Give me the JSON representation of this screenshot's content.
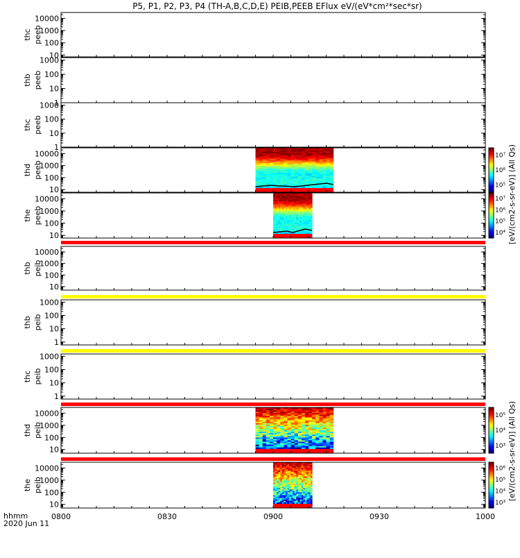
{
  "title": "P5, P1, P2, P3, P4 (TH-A,B,C,D,E) PEIB,PEEB EFlux eV/(eV*cm²*sec*sr)",
  "colorbar_label_top": "[eV/(cm2-s-sr-eV)] (All Qs)",
  "colorbar_label_bottom": "[eV/(cm2-s-sr-eV)] (All Qs)",
  "time_label": "hhmm",
  "date_label": "2020 Jun 11",
  "chart_data": {
    "type": "heatmap",
    "x_ticks": [
      "0800",
      "0830",
      "0900",
      "0930",
      "1000"
    ],
    "x_range": [
      "08:00",
      "10:00"
    ],
    "panels": [
      {
        "sat": "thc",
        "product": "peeb",
        "ylog": true,
        "ylim": [
          7,
          30000
        ],
        "yticks": [
          "10",
          "100",
          "1000",
          "10000"
        ],
        "spectrogram": null
      },
      {
        "sat": "thb",
        "product": "peeb",
        "ylog": true,
        "ylim": [
          1,
          1500
        ],
        "yticks": [
          "1",
          "10",
          "100",
          "1000"
        ],
        "spectrogram": null
      },
      {
        "sat": "thc",
        "product": "peeb",
        "ylog": true,
        "ylim": [
          1,
          1500
        ],
        "yticks": [
          "1",
          "10",
          "100",
          "1000"
        ],
        "spectrogram": null
      },
      {
        "sat": "thd",
        "product": "peeb",
        "ylog": true,
        "ylim": [
          6,
          30000
        ],
        "yticks": [
          "10",
          "100",
          "1000",
          "10000"
        ],
        "spectrogram": {
          "t_start": "08:55",
          "t_end": "09:17",
          "colorbar_ticks": [
            "10⁵",
            "10⁶",
            "10⁷"
          ]
        }
      },
      {
        "sat": "the",
        "product": "peeb",
        "ylog": true,
        "ylim": [
          6,
          30000
        ],
        "yticks": [
          "10",
          "100",
          "1000",
          "10000"
        ],
        "spectrogram": {
          "t_start": "09:00",
          "t_end": "09:11",
          "colorbar_ticks": [
            "10⁴",
            "10⁵",
            "10⁶",
            "10⁷"
          ]
        }
      },
      {
        "sat": "thb",
        "product": "peib",
        "ylog": true,
        "ylim": [
          5,
          30000
        ],
        "yticks": [
          "10",
          "100",
          "1000",
          "10000"
        ],
        "spectrogram": null
      },
      {
        "sat": "thb",
        "product": "peib",
        "ylog": true,
        "ylim": [
          0.6,
          1500
        ],
        "yticks": [
          "1",
          "10",
          "100",
          "1000"
        ],
        "spectrogram": null
      },
      {
        "sat": "thc",
        "product": "peib",
        "ylog": true,
        "ylim": [
          0.6,
          1500
        ],
        "yticks": [
          "1",
          "10",
          "100",
          "1000"
        ],
        "spectrogram": null
      },
      {
        "sat": "thd",
        "product": "peib",
        "ylog": true,
        "ylim": [
          5,
          30000
        ],
        "yticks": [
          "10",
          "100",
          "1000",
          "10000"
        ],
        "spectrogram": {
          "t_start": "08:55",
          "t_end": "09:17",
          "colorbar_ticks": [
            "10³",
            "10⁴",
            "10⁵"
          ]
        }
      },
      {
        "sat": "the",
        "product": "peib",
        "ylog": true,
        "ylim": [
          5,
          30000
        ],
        "yticks": [
          "10",
          "100",
          "1000",
          "10000"
        ],
        "spectrogram": {
          "t_start": "09:00",
          "t_end": "09:11",
          "colorbar_ticks": [
            "10³",
            "10⁴",
            "10⁵",
            "10⁶"
          ]
        }
      }
    ],
    "colors": {
      "mode_bar_red": "#ff0000",
      "mode_bar_yellow": "#ffff00"
    }
  }
}
